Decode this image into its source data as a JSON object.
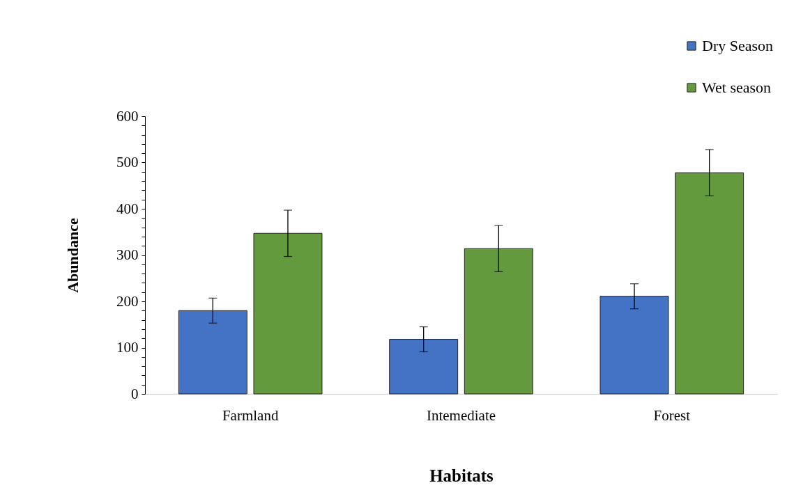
{
  "chart_data": {
    "type": "bar",
    "categories": [
      "Farmland",
      "Intemediate",
      "Forest"
    ],
    "series": [
      {
        "name": "Dry Season",
        "color": "#4472c4",
        "values": [
          180,
          118,
          211
        ],
        "errors": [
          27,
          27,
          27
        ]
      },
      {
        "name": "Wet season",
        "color": "#639a3e",
        "values": [
          347,
          314,
          478
        ],
        "errors": [
          50,
          50,
          50
        ]
      }
    ],
    "xlabel": "Habitats",
    "ylabel": "Abundance",
    "ylim": [
      0,
      600
    ],
    "yticks": [
      0,
      {
        "value": 20,
        "label": null
      },
      {
        "value": 40,
        "label": null
      },
      {
        "value": 60,
        "label": null
      },
      {
        "value": 80,
        "label": null
      },
      100,
      {
        "value": 120,
        "label": null
      },
      {
        "value": 140,
        "label": null
      },
      {
        "value": 160,
        "label": null
      },
      {
        "value": 180,
        "label": null
      },
      200,
      {
        "value": 220,
        "label": null
      },
      {
        "value": 240,
        "label": null
      },
      {
        "value": 260,
        "label": null
      },
      {
        "value": 280,
        "label": null
      },
      300,
      {
        "value": 320,
        "label": null
      },
      {
        "value": 340,
        "label": null
      },
      {
        "value": 360,
        "label": null
      },
      {
        "value": 380,
        "label": null
      },
      400,
      {
        "value": 420,
        "label": null
      },
      {
        "value": 440,
        "label": null
      },
      {
        "value": 460,
        "label": null
      },
      {
        "value": 480,
        "label": null
      },
      500,
      {
        "value": 520,
        "label": null
      },
      {
        "value": 540,
        "label": null
      },
      {
        "value": 560,
        "label": null
      },
      {
        "value": 580,
        "label": null
      },
      600
    ],
    "legend": "top right"
  }
}
